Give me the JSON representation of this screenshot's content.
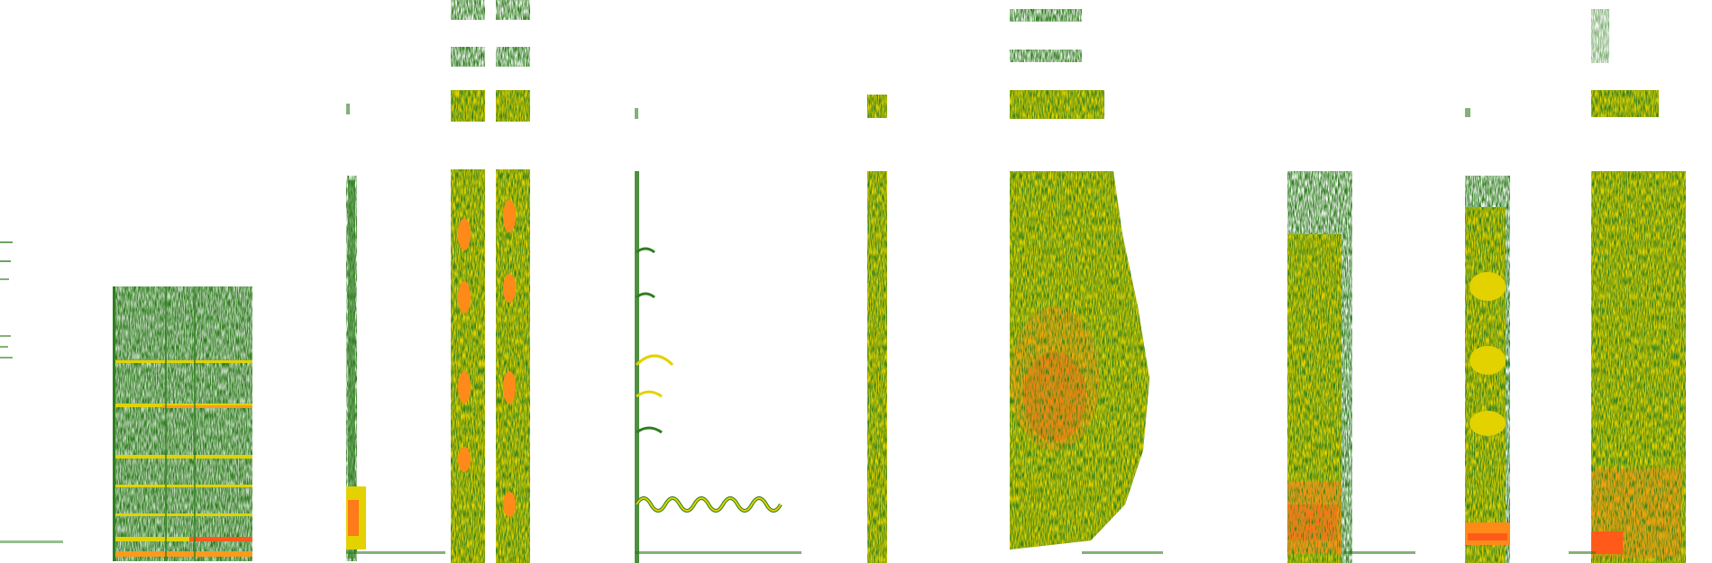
{
  "image": {
    "description_visible_text": "",
    "colors": {
      "background": "#ffffff",
      "low_energy": "#2f7d1f",
      "mid_energy": "#e3d200",
      "high_energy": "#ff5a1a"
    }
  }
}
